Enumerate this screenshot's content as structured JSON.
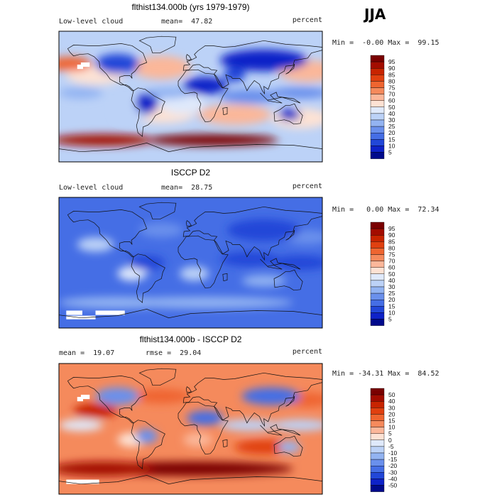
{
  "season": "JJA",
  "colors": {
    "map_fallback": "#9ec3ff",
    "land_outline": "#111111",
    "missing": "#ffffff"
  },
  "levels": {
    "abs": [
      "95",
      "90",
      "85",
      "80",
      "75",
      "70",
      "60",
      "50",
      "40",
      "30",
      "25",
      "20",
      "15",
      "10",
      "5"
    ],
    "abs_colors": [
      "#7a0000",
      "#a30c00",
      "#c82400",
      "#e04010",
      "#ef6530",
      "#f58a5c",
      "#fbb79a",
      "#fde2d4",
      "#dfe9fb",
      "#bcd2f7",
      "#93b4f2",
      "#6a90ec",
      "#456ee5",
      "#2247d8",
      "#0e22c8",
      "#000a8c"
    ],
    "diff": [
      "50",
      "40",
      "30",
      "20",
      "15",
      "10",
      "5",
      "0",
      "-5",
      "-10",
      "-15",
      "-20",
      "-30",
      "-40",
      "-50"
    ],
    "diff_colors": [
      "#7a0000",
      "#a30c00",
      "#c82400",
      "#e04010",
      "#ef6530",
      "#f58a5c",
      "#fbb79a",
      "#fde2d4",
      "#dfe9fb",
      "#bcd2f7",
      "#93b4f2",
      "#6a90ec",
      "#456ee5",
      "#2247d8",
      "#0e22c8",
      "#000a8c"
    ]
  },
  "panels": [
    {
      "title": "flthist134.000b (yrs 1979-1979)",
      "left_label": "Low-level cloud",
      "mean_text": "mean=  47.82",
      "units": "percent",
      "minmax_text": "Min =  -0.00 Max =  99.15",
      "legend": "abs"
    },
    {
      "title": "ISCCP D2",
      "left_label": "Low-level cloud",
      "mean_text": "mean=  28.75",
      "units": "percent",
      "minmax_text": "Min =   0.00 Max =  72.34",
      "legend": "abs"
    },
    {
      "title": "flthist134.000b - ISCCP D2",
      "left_label": "mean =  19.07",
      "mean_text": "rmse =  29.04",
      "units": "percent",
      "minmax_text": "Min = -34.31 Max =  84.52",
      "legend": "diff"
    }
  ],
  "chart_data": [
    {
      "type": "heatmap",
      "title": "flthist134.000b (yrs 1979-1979)",
      "variable": "Low-level cloud",
      "units": "percent",
      "season": "JJA",
      "mean": 47.82,
      "min": -0.0,
      "max": 99.15,
      "contour_levels": [
        5,
        10,
        15,
        20,
        25,
        30,
        40,
        50,
        60,
        70,
        75,
        80,
        85,
        90,
        95
      ]
    },
    {
      "type": "heatmap",
      "title": "ISCCP D2",
      "variable": "Low-level cloud",
      "units": "percent",
      "season": "JJA",
      "mean": 28.75,
      "min": 0.0,
      "max": 72.34,
      "contour_levels": [
        5,
        10,
        15,
        20,
        25,
        30,
        40,
        50,
        60,
        70,
        75,
        80,
        85,
        90,
        95
      ]
    },
    {
      "type": "heatmap",
      "title": "flthist134.000b - ISCCP D2",
      "units": "percent",
      "season": "JJA",
      "mean": 19.07,
      "rmse": 29.04,
      "min": -34.31,
      "max": 84.52,
      "contour_levels": [
        -50,
        -40,
        -30,
        -20,
        -15,
        -10,
        -5,
        0,
        5,
        10,
        15,
        20,
        30,
        40,
        50
      ]
    }
  ]
}
